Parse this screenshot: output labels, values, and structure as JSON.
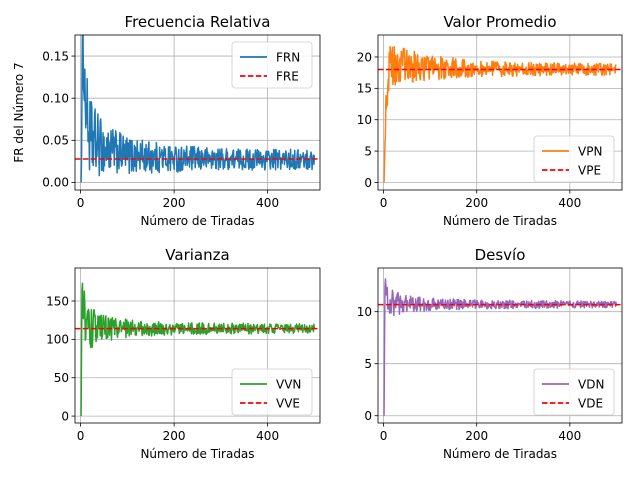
{
  "chart_data": [
    {
      "type": "line",
      "title": "Frecuencia Relativa",
      "xlabel": "Número de Tiradas",
      "ylabel": "FR del Número 7",
      "xlim": [
        -12,
        512
      ],
      "ylim": [
        -0.009,
        0.175
      ],
      "xticks": [
        0,
        200,
        400
      ],
      "xtick_labels": [
        "0",
        "200",
        "400"
      ],
      "yticks": [
        0.0,
        0.05,
        0.1,
        0.15
      ],
      "ytick_labels": [
        "0.00",
        "0.05",
        "0.10",
        "0.15"
      ],
      "grid": true,
      "legend_position": "upper right",
      "colors": {
        "series": "#1f77b4",
        "expected": "#ff0000"
      },
      "noisy_series": {
        "name": "FRN",
        "n": 500,
        "anchors": [
          [
            1,
            0.0
          ],
          [
            4,
            0.167
          ],
          [
            10,
            0.1
          ],
          [
            20,
            0.05
          ],
          [
            50,
            0.04
          ],
          [
            100,
            0.032
          ],
          [
            200,
            0.028
          ],
          [
            300,
            0.028
          ],
          [
            400,
            0.027
          ],
          [
            500,
            0.027
          ]
        ],
        "amp_anchors": [
          [
            1,
            0.03
          ],
          [
            20,
            0.05
          ],
          [
            50,
            0.03
          ],
          [
            100,
            0.022
          ],
          [
            200,
            0.016
          ],
          [
            300,
            0.013
          ],
          [
            500,
            0.012
          ]
        ],
        "clip": [
          0,
          1
        ]
      },
      "expected": {
        "name": "FRE",
        "value": 0.0278
      }
    },
    {
      "type": "line",
      "title": "Valor Promedio",
      "xlabel": "Número de Tiradas",
      "ylabel": "",
      "xlim": [
        -12,
        512
      ],
      "ylim": [
        -1.2,
        23.5
      ],
      "xticks": [
        0,
        200,
        400
      ],
      "xtick_labels": [
        "0",
        "200",
        "400"
      ],
      "yticks": [
        0,
        5,
        10,
        15,
        20
      ],
      "ytick_labels": [
        "0",
        "5",
        "10",
        "15",
        "20"
      ],
      "grid": true,
      "legend_position": "lower right",
      "colors": {
        "series": "#ff7f0e",
        "expected": "#ff0000"
      },
      "noisy_series": {
        "name": "VPN",
        "n": 500,
        "anchors": [
          [
            1,
            0.0
          ],
          [
            5,
            12.5
          ],
          [
            12,
            18.5
          ],
          [
            30,
            18.5
          ],
          [
            100,
            18.3
          ],
          [
            200,
            18.1
          ],
          [
            500,
            18.0
          ]
        ],
        "amp_anchors": [
          [
            1,
            0.5
          ],
          [
            8,
            3.5
          ],
          [
            40,
            3.0
          ],
          [
            100,
            2.0
          ],
          [
            200,
            1.3
          ],
          [
            300,
            1.1
          ],
          [
            500,
            0.9
          ]
        ],
        "clip": [
          0,
          24
        ]
      },
      "expected": {
        "name": "VPE",
        "value": 18.0
      }
    },
    {
      "type": "line",
      "title": "Varianza",
      "xlabel": "Número de Tiradas",
      "ylabel": "",
      "xlim": [
        -12,
        512
      ],
      "ylim": [
        -9,
        193
      ],
      "xticks": [
        0,
        200,
        400
      ],
      "xtick_labels": [
        "0",
        "200",
        "400"
      ],
      "yticks": [
        0,
        50,
        100,
        150
      ],
      "ytick_labels": [
        "0",
        "50",
        "100",
        "150"
      ],
      "grid": true,
      "legend_position": "lower right",
      "colors": {
        "series": "#2ca02c",
        "expected": "#ff0000"
      },
      "noisy_series": {
        "name": "VVN",
        "n": 500,
        "anchors": [
          [
            1,
            0.0
          ],
          [
            3,
            170
          ],
          [
            6,
            140
          ],
          [
            15,
            115
          ],
          [
            50,
            114
          ],
          [
            500,
            114
          ]
        ],
        "amp_anchors": [
          [
            1,
            10
          ],
          [
            8,
            35
          ],
          [
            40,
            18
          ],
          [
            100,
            12
          ],
          [
            200,
            8
          ],
          [
            500,
            6
          ]
        ],
        "clip": [
          0,
          186
        ]
      },
      "expected": {
        "name": "VVE",
        "value": 114
      }
    },
    {
      "type": "line",
      "title": "Desvío",
      "xlabel": "Número de Tiradas",
      "ylabel": "",
      "xlim": [
        -12,
        512
      ],
      "ylim": [
        -0.7,
        14.2
      ],
      "xticks": [
        0,
        200,
        400
      ],
      "xtick_labels": [
        "0",
        "200",
        "400"
      ],
      "yticks": [
        0,
        5,
        10
      ],
      "ytick_labels": [
        "0",
        "5",
        "10"
      ],
      "grid": true,
      "legend_position": "lower right",
      "colors": {
        "series": "#9467bd",
        "expected": "#ff0000"
      },
      "noisy_series": {
        "name": "VDN",
        "n": 500,
        "anchors": [
          [
            1,
            0.0
          ],
          [
            3,
            13.0
          ],
          [
            6,
            11.8
          ],
          [
            15,
            10.8
          ],
          [
            50,
            10.7
          ],
          [
            500,
            10.7
          ]
        ],
        "amp_anchors": [
          [
            1,
            0.5
          ],
          [
            8,
            1.6
          ],
          [
            40,
            0.9
          ],
          [
            100,
            0.6
          ],
          [
            200,
            0.45
          ],
          [
            500,
            0.3
          ]
        ],
        "clip": [
          0,
          13.6
        ]
      },
      "expected": {
        "name": "VDE",
        "value": 10.68
      }
    }
  ]
}
